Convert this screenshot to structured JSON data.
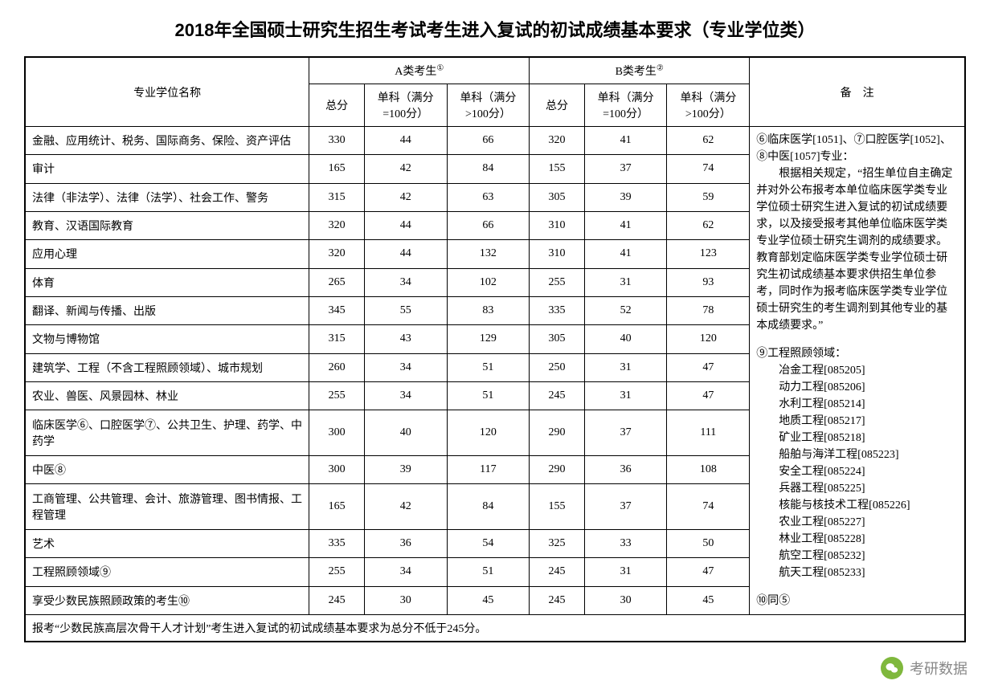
{
  "title": "2018年全国硕士研究生招生考试考生进入复试的初试成绩基本要求（专业学位类）",
  "headers": {
    "name": "专业学位名称",
    "catA": "A类考生",
    "catA_sup": "①",
    "catB": "B类考生",
    "catB_sup": "②",
    "notes": "备　注",
    "total": "总分",
    "sub100": "单科（满分=100分）",
    "subGt100": "单科（满分>100分）"
  },
  "rows": [
    {
      "name": "金融、应用统计、税务、国际商务、保险、资产评估",
      "a": [
        330,
        44,
        66
      ],
      "b": [
        320,
        41,
        62
      ]
    },
    {
      "name": "审计",
      "a": [
        165,
        42,
        84
      ],
      "b": [
        155,
        37,
        74
      ]
    },
    {
      "name": "法律（非法学）、法律（法学）、社会工作、警务",
      "a": [
        315,
        42,
        63
      ],
      "b": [
        305,
        39,
        59
      ]
    },
    {
      "name": "教育、汉语国际教育",
      "a": [
        320,
        44,
        66
      ],
      "b": [
        310,
        41,
        62
      ]
    },
    {
      "name": "应用心理",
      "a": [
        320,
        44,
        132
      ],
      "b": [
        310,
        41,
        123
      ]
    },
    {
      "name": "体育",
      "a": [
        265,
        34,
        102
      ],
      "b": [
        255,
        31,
        93
      ]
    },
    {
      "name": "翻译、新闻与传播、出版",
      "a": [
        345,
        55,
        83
      ],
      "b": [
        335,
        52,
        78
      ]
    },
    {
      "name": "文物与博物馆",
      "a": [
        315,
        43,
        129
      ],
      "b": [
        305,
        40,
        120
      ]
    },
    {
      "name": "建筑学、工程（不含工程照顾领域）、城市规划",
      "a": [
        260,
        34,
        51
      ],
      "b": [
        250,
        31,
        47
      ]
    },
    {
      "name": "农业、兽医、风景园林、林业",
      "a": [
        255,
        34,
        51
      ],
      "b": [
        245,
        31,
        47
      ]
    },
    {
      "name": "临床医学⑥、口腔医学⑦、公共卫生、护理、药学、中药学",
      "a": [
        300,
        40,
        120
      ],
      "b": [
        290,
        37,
        111
      ]
    },
    {
      "name": "中医⑧",
      "a": [
        300,
        39,
        117
      ],
      "b": [
        290,
        36,
        108
      ]
    },
    {
      "name": "工商管理、公共管理、会计、旅游管理、图书情报、工程管理",
      "a": [
        165,
        42,
        84
      ],
      "b": [
        155,
        37,
        74
      ]
    },
    {
      "name": "艺术",
      "a": [
        335,
        36,
        54
      ],
      "b": [
        325,
        33,
        50
      ]
    },
    {
      "name": "工程照顾领域⑨",
      "a": [
        255,
        34,
        51
      ],
      "b": [
        245,
        31,
        47
      ]
    },
    {
      "name": "享受少数民族照顾政策的考生⑩",
      "a": [
        245,
        30,
        45
      ],
      "b": [
        245,
        30,
        45
      ]
    }
  ],
  "footnote": "报考“少数民族高层次骨干人才计划”考生进入复试的初试成绩基本要求为总分不低于245分。",
  "notes": {
    "block1_line1": "⑥临床医学[1051]、⑦口腔医学[1052]、⑧中医[1057]专业：",
    "block1_body": "根据相关规定，“招生单位自主确定并对外公布报考本单位临床医学类专业学位硕士研究生进入复试的初试成绩要求，以及接受报考其他单位临床医学类专业学位硕士研究生调剂的成绩要求。教育部划定临床医学类专业学位硕士研究生初试成绩基本要求供招生单位参考，同时作为报考临床医学类专业学位硕士研究生的考生调剂到其他专业的基本成绩要求。”",
    "block2_title": "⑨工程照顾领域：",
    "block2_items": [
      "冶金工程[085205]",
      "动力工程[085206]",
      "水利工程[085214]",
      "地质工程[085217]",
      "矿业工程[085218]",
      "船舶与海洋工程[085223]",
      "安全工程[085224]",
      "兵器工程[085225]",
      "核能与核技术工程[085226]",
      "农业工程[085227]",
      "林业工程[085228]",
      "航空工程[085232]",
      "航天工程[085233]"
    ],
    "block3": "⑩同⑤"
  },
  "watermark": {
    "icon": "●",
    "label": "考研数据"
  },
  "style": {
    "background": "#ffffff",
    "border_color": "#000000",
    "title_fontsize": 22,
    "body_fontsize": 14,
    "notes_fontsize": 12,
    "watermark_color": "#888888",
    "watermark_icon_bg": "#7fb83d"
  }
}
